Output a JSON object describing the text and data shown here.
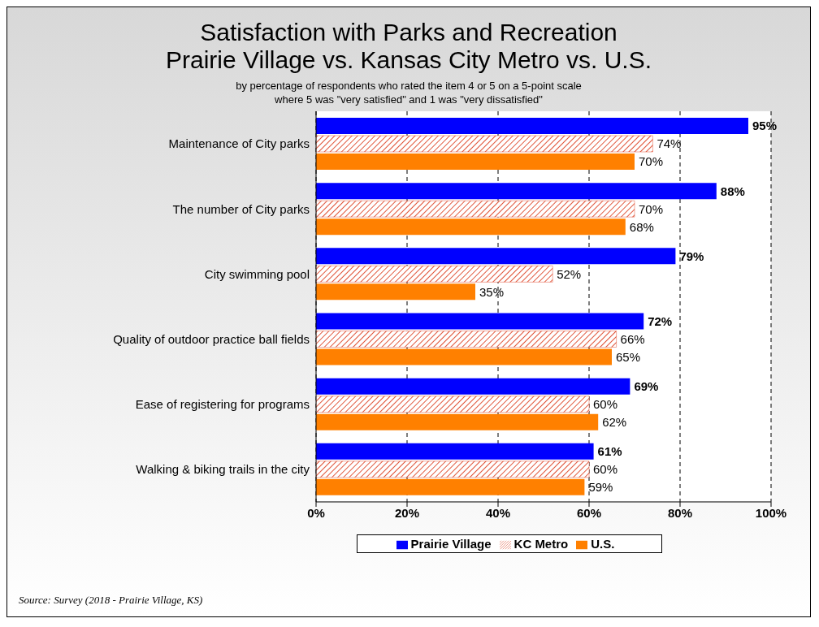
{
  "chart_data": {
    "type": "bar",
    "orientation": "horizontal",
    "title": "Satisfaction with Parks and Recreation\nPrairie Village vs. Kansas City Metro vs. U.S.",
    "subtitle": "by percentage of respondents who rated the item 4 or 5 on a 5-point scale\nwhere 5 was \"very satisfied\" and 1 was \"very dissatisfied\"",
    "categories": [
      "Maintenance of City parks",
      "The number of City parks",
      "City swimming pool",
      "Quality of outdoor practice ball fields",
      "Ease of registering for programs",
      "Walking & biking trails in the city"
    ],
    "series": [
      {
        "name": "Prairie Village",
        "color": "#0000ff",
        "values": [
          95,
          88,
          79,
          72,
          69,
          61
        ],
        "value_labels": [
          "95%",
          "88%",
          "79%",
          "72%",
          "69%",
          "61%"
        ]
      },
      {
        "name": "KC Metro",
        "color": "#e0553a",
        "values": [
          74,
          70,
          52,
          66,
          60,
          60
        ],
        "value_labels": [
          "74%",
          "70%",
          "52%",
          "66%",
          "60%",
          "60%"
        ]
      },
      {
        "name": "U.S.",
        "color": "#ff8000",
        "values": [
          70,
          68,
          35,
          65,
          62,
          59
        ],
        "value_labels": [
          "70%",
          "68%",
          "35%",
          "65%",
          "62%",
          "59%"
        ]
      }
    ],
    "xlim": [
      0,
      100
    ],
    "xticks": [
      {
        "value": 0,
        "label": "0%"
      },
      {
        "value": 20,
        "label": "20%"
      },
      {
        "value": 40,
        "label": "40%"
      },
      {
        "value": 60,
        "label": "60%"
      },
      {
        "value": 80,
        "label": "80%"
      },
      {
        "value": 100,
        "label": "100%"
      }
    ],
    "grid": "x",
    "legend": "bottom",
    "annotations": [
      "Source:  Survey (2018 - Prairie Village, KS)"
    ]
  }
}
